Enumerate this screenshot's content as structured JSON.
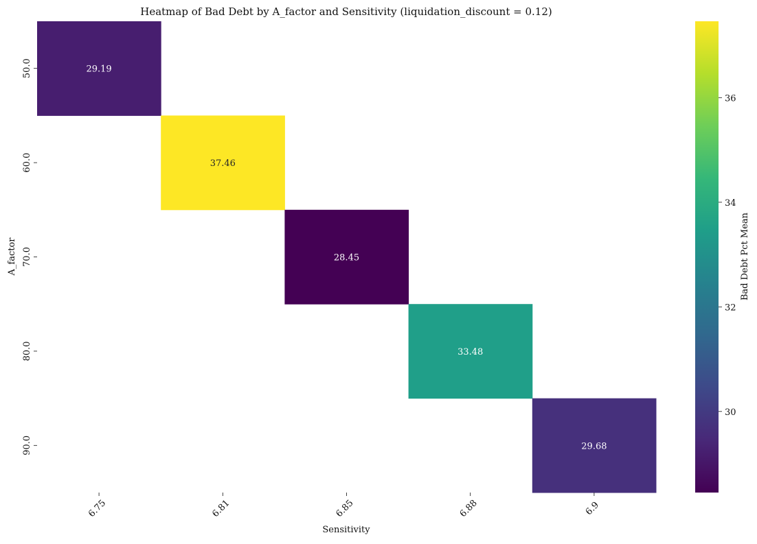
{
  "chart_data": {
    "type": "heatmap",
    "title": "Heatmap of Bad Debt by A_factor and Sensitivity (liquidation_discount = 0.12)",
    "xlabel": "Sensitivity",
    "ylabel": "A_factor",
    "x_categories": [
      "6.75",
      "6.81",
      "6.85",
      "6.88",
      "6.9"
    ],
    "y_categories": [
      "50.0",
      "60.0",
      "70.0",
      "80.0",
      "90.0"
    ],
    "cells": [
      {
        "x": "6.75",
        "y": "50.0",
        "value": 29.19,
        "label": "29.19"
      },
      {
        "x": "6.81",
        "y": "60.0",
        "value": 37.46,
        "label": "37.46"
      },
      {
        "x": "6.85",
        "y": "70.0",
        "value": 28.45,
        "label": "28.45"
      },
      {
        "x": "6.88",
        "y": "80.0",
        "value": 33.48,
        "label": "33.48"
      },
      {
        "x": "6.9",
        "y": "90.0",
        "value": 29.68,
        "label": "29.68"
      }
    ],
    "missing_cells": "blank",
    "colormap": "viridis",
    "colorbar": {
      "label": "Bad Debt Pct Mean",
      "vmin": 28.45,
      "vmax": 37.46,
      "ticks": [
        30,
        32,
        34,
        36
      ]
    },
    "x_tick_rotation": 45,
    "y_tick_rotation": 90,
    "grid": false,
    "legend": "none"
  }
}
